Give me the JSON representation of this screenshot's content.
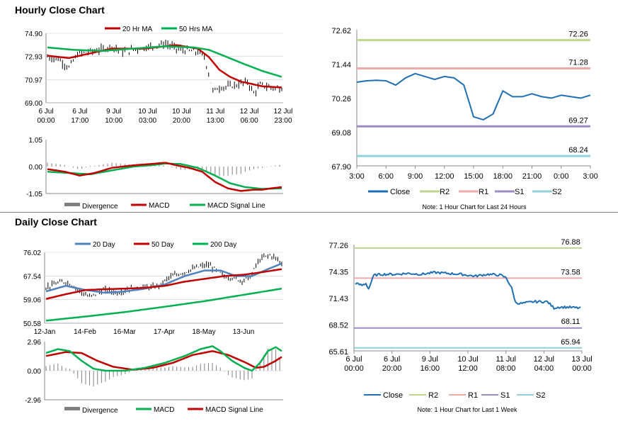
{
  "sections": {
    "hourly_title": "Hourly Close Chart",
    "daily_title": "Daily Close Chart"
  },
  "colors": {
    "ma20": "#c00000",
    "ma50": "#00b050",
    "close": "#1f6fb5",
    "r2": "#bcd58f",
    "r1": "#eea9a9",
    "s1": "#9b8bc1",
    "s2": "#8fcfd6",
    "divergence": "#808080",
    "macd_red": "#c00000",
    "macd_green": "#00b050",
    "day20": "#4f81bd"
  },
  "chart_data": [
    {
      "id": "hourly_price",
      "type": "line",
      "ylim": [
        69.0,
        74.9
      ],
      "yticks": [
        "74.90",
        "72.93",
        "70.97",
        "69.00"
      ],
      "xticks": [
        [
          "6 Jul",
          "00:00"
        ],
        [
          "6 Jul",
          "17:00"
        ],
        [
          "9 Jul",
          "10:00"
        ],
        [
          "10 Jul",
          "03:00"
        ],
        [
          "10 Jul",
          "20:00"
        ],
        [
          "11 Jul",
          "13:00"
        ],
        [
          "12 Jul",
          "06:00"
        ],
        [
          "12 Jul",
          "23:00"
        ]
      ],
      "n": 110,
      "price_keys": [
        [
          0,
          72.9
        ],
        [
          5,
          72.7
        ],
        [
          10,
          72.0
        ],
        [
          14,
          73.1
        ],
        [
          18,
          73.3
        ],
        [
          25,
          73.5
        ],
        [
          30,
          73.8
        ],
        [
          35,
          73.3
        ],
        [
          40,
          73.5
        ],
        [
          48,
          73.8
        ],
        [
          55,
          74.0
        ],
        [
          60,
          73.6
        ],
        [
          66,
          73.4
        ],
        [
          70,
          73.3
        ],
        [
          73,
          72.9
        ],
        [
          75,
          71.5
        ],
        [
          77,
          70.0
        ],
        [
          80,
          70.3
        ],
        [
          85,
          70.4
        ],
        [
          90,
          70.6
        ],
        [
          93,
          70.8
        ],
        [
          96,
          69.8
        ],
        [
          99,
          70.5
        ],
        [
          104,
          70.3
        ],
        [
          109,
          70.2
        ]
      ],
      "series": [
        {
          "name": "20 Hr MA",
          "keys": [
            [
              0,
              73.0
            ],
            [
              10,
              72.8
            ],
            [
              20,
              73.2
            ],
            [
              30,
              73.6
            ],
            [
              45,
              73.6
            ],
            [
              60,
              73.9
            ],
            [
              70,
              73.6
            ],
            [
              75,
              72.9
            ],
            [
              80,
              71.8
            ],
            [
              85,
              71.2
            ],
            [
              90,
              70.8
            ],
            [
              95,
              70.6
            ],
            [
              100,
              70.4
            ],
            [
              109,
              70.3
            ]
          ]
        },
        {
          "name": "50 Hrs MA",
          "keys": [
            [
              0,
              73.7
            ],
            [
              12,
              73.5
            ],
            [
              25,
              73.4
            ],
            [
              40,
              73.6
            ],
            [
              55,
              73.8
            ],
            [
              68,
              73.7
            ],
            [
              75,
              73.5
            ],
            [
              82,
              73.0
            ],
            [
              90,
              72.4
            ],
            [
              100,
              71.7
            ],
            [
              109,
              71.2
            ]
          ]
        }
      ],
      "legend": [
        "20 Hr MA",
        "50 Hrs MA"
      ]
    },
    {
      "id": "hourly_macd",
      "type": "line",
      "ylim": [
        -1.05,
        1.05
      ],
      "yticks": [
        "1.05",
        "0.00",
        "-1.05"
      ],
      "n": 110,
      "series": [
        {
          "name": "MACD",
          "keys": [
            [
              0,
              -0.1
            ],
            [
              8,
              -0.2
            ],
            [
              15,
              -0.35
            ],
            [
              22,
              -0.25
            ],
            [
              30,
              -0.05
            ],
            [
              40,
              0.05
            ],
            [
              48,
              0.1
            ],
            [
              55,
              0.15
            ],
            [
              60,
              0.05
            ],
            [
              66,
              -0.05
            ],
            [
              72,
              -0.2
            ],
            [
              78,
              -0.6
            ],
            [
              84,
              -0.85
            ],
            [
              90,
              -0.95
            ],
            [
              96,
              -0.9
            ],
            [
              100,
              -0.9
            ],
            [
              104,
              -0.85
            ],
            [
              109,
              -0.8
            ]
          ]
        },
        {
          "name": "MACD Signal Line",
          "keys": [
            [
              0,
              -0.2
            ],
            [
              10,
              -0.25
            ],
            [
              20,
              -0.3
            ],
            [
              30,
              -0.15
            ],
            [
              40,
              0.0
            ],
            [
              48,
              0.05
            ],
            [
              55,
              0.12
            ],
            [
              62,
              0.1
            ],
            [
              70,
              -0.05
            ],
            [
              78,
              -0.35
            ],
            [
              85,
              -0.65
            ],
            [
              92,
              -0.8
            ],
            [
              100,
              -0.87
            ],
            [
              109,
              -0.85
            ]
          ]
        }
      ],
      "legend": [
        "Divergence",
        "MACD",
        "MACD Signal Line"
      ]
    },
    {
      "id": "hourly_levels",
      "type": "line",
      "ylim": [
        67.9,
        72.62
      ],
      "yticks": [
        "72.62",
        "71.44",
        "70.26",
        "69.08",
        "67.90"
      ],
      "xticks": [
        "3:00",
        "6:00",
        "9:00",
        "12:00",
        "15:00",
        "18:00",
        "21:00",
        "0:00",
        "3:00"
      ],
      "levels": [
        {
          "name": "R2",
          "value": 72.26,
          "label": "72.26"
        },
        {
          "name": "R1",
          "value": 71.28,
          "label": "71.28"
        },
        {
          "name": "S1",
          "value": 69.27,
          "label": "69.27"
        },
        {
          "name": "S2",
          "value": 68.24,
          "label": "68.24"
        }
      ],
      "close": [
        70.8,
        70.85,
        70.87,
        70.85,
        70.7,
        70.95,
        71.1,
        71.0,
        70.9,
        71.0,
        70.95,
        70.7,
        69.6,
        69.5,
        69.7,
        70.5,
        70.3,
        70.3,
        70.4,
        70.3,
        70.25,
        70.35,
        70.3,
        70.25,
        70.35
      ],
      "legend": [
        "Close",
        "R2",
        "R1",
        "S1",
        "S2"
      ],
      "note": "Note: 1 Hour Chart for Last 24 Hours"
    },
    {
      "id": "daily_price",
      "type": "line",
      "ylim": [
        50.58,
        76.02
      ],
      "yticks": [
        "76.02",
        "67.54",
        "59.06",
        "50.58"
      ],
      "xticks": [
        "12-Jan",
        "14-Feb",
        "16-Mar",
        "17-Apr",
        "18-May",
        "13-Jun"
      ],
      "n": 120,
      "price_keys": [
        [
          0,
          63.5
        ],
        [
          6,
          65.0
        ],
        [
          10,
          65.5
        ],
        [
          14,
          64.0
        ],
        [
          18,
          61.5
        ],
        [
          22,
          60.0
        ],
        [
          26,
          61.5
        ],
        [
          30,
          62.5
        ],
        [
          36,
          61.5
        ],
        [
          42,
          63.0
        ],
        [
          48,
          63.5
        ],
        [
          54,
          63.5
        ],
        [
          58,
          64.5
        ],
        [
          62,
          67.0
        ],
        [
          66,
          68.0
        ],
        [
          70,
          69.0
        ],
        [
          74,
          70.0
        ],
        [
          78,
          71.0
        ],
        [
          82,
          71.5
        ],
        [
          86,
          69.5
        ],
        [
          90,
          67.5
        ],
        [
          94,
          67.0
        ],
        [
          98,
          66.0
        ],
        [
          102,
          66.5
        ],
        [
          104,
          68.0
        ],
        [
          106,
          71.5
        ],
        [
          109,
          74.0
        ],
        [
          113,
          75.0
        ],
        [
          116,
          74.0
        ],
        [
          119,
          72.0
        ]
      ],
      "series": [
        {
          "name": "20 Day",
          "keys": [
            [
              0,
              62.0
            ],
            [
              10,
              64.0
            ],
            [
              20,
              62.5
            ],
            [
              30,
              61.5
            ],
            [
              40,
              62.0
            ],
            [
              50,
              63.0
            ],
            [
              60,
              64.5
            ],
            [
              70,
              67.5
            ],
            [
              80,
              69.5
            ],
            [
              88,
              69.5
            ],
            [
              96,
              67.5
            ],
            [
              104,
              67.5
            ],
            [
              112,
              70.0
            ],
            [
              119,
              72.0
            ]
          ]
        },
        {
          "name": "50 Day",
          "keys": [
            [
              0,
              59.3
            ],
            [
              10,
              61.0
            ],
            [
              20,
              62.5
            ],
            [
              30,
              62.8
            ],
            [
              40,
              63.0
            ],
            [
              50,
              63.3
            ],
            [
              60,
              64.0
            ],
            [
              70,
              65.5
            ],
            [
              80,
              66.5
            ],
            [
              90,
              67.5
            ],
            [
              100,
              68.0
            ],
            [
              110,
              69.0
            ],
            [
              119,
              70.0
            ]
          ]
        },
        {
          "name": "200 Day",
          "keys": [
            [
              0,
              51.5
            ],
            [
              20,
              53.0
            ],
            [
              40,
              54.6
            ],
            [
              60,
              56.5
            ],
            [
              80,
              58.5
            ],
            [
              100,
              60.8
            ],
            [
              119,
              63.0
            ]
          ]
        }
      ],
      "legend": [
        "20 Day",
        "50 Day",
        "200 Day"
      ]
    },
    {
      "id": "daily_macd",
      "type": "line",
      "ylim": [
        -2.96,
        2.96
      ],
      "yticks": [
        "2.96",
        "0.00",
        "-2.96"
      ],
      "n": 120,
      "series": [
        {
          "name": "MACD",
          "keys": [
            [
              0,
              1.8
            ],
            [
              6,
              2.2
            ],
            [
              12,
              2.0
            ],
            [
              18,
              1.0
            ],
            [
              24,
              0.2
            ],
            [
              30,
              0.0
            ],
            [
              40,
              0.0
            ],
            [
              50,
              0.3
            ],
            [
              60,
              0.8
            ],
            [
              70,
              1.5
            ],
            [
              78,
              2.2
            ],
            [
              84,
              2.5
            ],
            [
              88,
              2.0
            ],
            [
              94,
              1.0
            ],
            [
              100,
              0.3
            ],
            [
              104,
              0.0
            ],
            [
              108,
              0.8
            ],
            [
              112,
              2.0
            ],
            [
              116,
              2.4
            ],
            [
              119,
              2.0
            ]
          ]
        },
        {
          "name": "MACD Signal Line",
          "keys": [
            [
              0,
              1.5
            ],
            [
              10,
              1.9
            ],
            [
              18,
              1.8
            ],
            [
              26,
              1.0
            ],
            [
              34,
              0.4
            ],
            [
              44,
              0.1
            ],
            [
              54,
              0.3
            ],
            [
              64,
              0.8
            ],
            [
              74,
              1.6
            ],
            [
              84,
              2.0
            ],
            [
              92,
              1.6
            ],
            [
              100,
              0.9
            ],
            [
              106,
              0.3
            ],
            [
              110,
              0.4
            ],
            [
              115,
              0.9
            ],
            [
              119,
              1.4
            ]
          ]
        }
      ],
      "legend": [
        "Divergence",
        "MACD",
        "MACD Signal Line"
      ]
    },
    {
      "id": "weekly_levels",
      "type": "line",
      "ylim": [
        65.61,
        77.26
      ],
      "yticks": [
        "77.26",
        "74.35",
        "71.43",
        "68.52",
        "65.61"
      ],
      "xticks": [
        [
          "6 Jul",
          "00:00"
        ],
        [
          "6 Jul",
          "20:00"
        ],
        [
          "9 Jul",
          "16:00"
        ],
        [
          "10 Jul",
          "12:00"
        ],
        [
          "11 Jul",
          "08:00"
        ],
        [
          "12 Jul",
          "04:00"
        ],
        [
          "13 Jul",
          "00:00"
        ]
      ],
      "levels": [
        {
          "name": "R2",
          "value": 76.88,
          "label": "76.88"
        },
        {
          "name": "R1",
          "value": 73.58,
          "label": "73.58"
        },
        {
          "name": "S1",
          "value": 68.11,
          "label": "68.11"
        },
        {
          "name": "S2",
          "value": 65.94,
          "label": "65.94"
        }
      ],
      "close_keys": [
        [
          0,
          73.0
        ],
        [
          5,
          72.8
        ],
        [
          8,
          73.0
        ],
        [
          10,
          72.4
        ],
        [
          14,
          73.9
        ],
        [
          20,
          74.0
        ],
        [
          30,
          74.0
        ],
        [
          40,
          74.1
        ],
        [
          50,
          74.0
        ],
        [
          60,
          74.2
        ],
        [
          70,
          74.1
        ],
        [
          80,
          74.0
        ],
        [
          90,
          73.8
        ],
        [
          100,
          74.0
        ],
        [
          110,
          73.9
        ],
        [
          114,
          73.6
        ],
        [
          118,
          72.5
        ],
        [
          121,
          70.9
        ],
        [
          125,
          70.8
        ],
        [
          135,
          71.0
        ],
        [
          145,
          71.0
        ],
        [
          150,
          70.3
        ],
        [
          153,
          70.4
        ],
        [
          160,
          70.4
        ],
        [
          170,
          70.3
        ]
      ],
      "n": 171,
      "legend": [
        "Close",
        "R2",
        "R1",
        "S1",
        "S2"
      ],
      "note": "Note: 1 Hour Chart for Last 1 Week"
    }
  ]
}
